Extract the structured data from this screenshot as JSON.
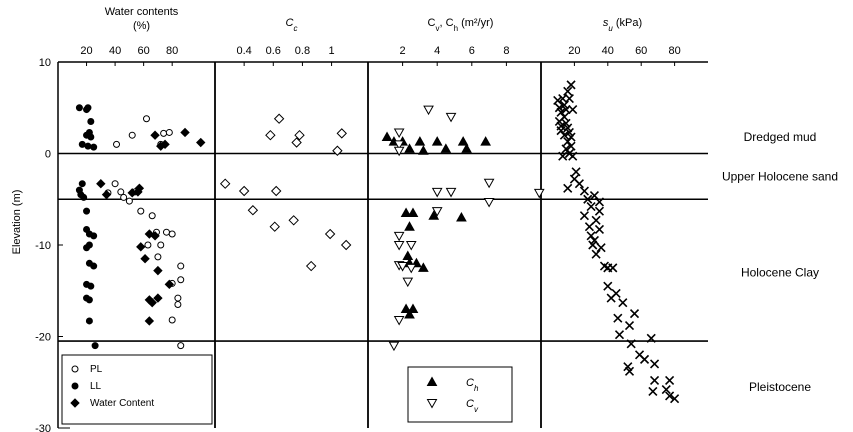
{
  "chart_data": {
    "type": "scatter",
    "y_axis": {
      "label": "Elevation (m)",
      "range": [
        -30,
        10
      ],
      "ticks": [
        10,
        0,
        -10,
        -20,
        -30
      ]
    },
    "layer_boundaries": [
      0,
      -5,
      -20.5
    ],
    "layers": [
      {
        "name": "Dredged mud",
        "elevation": 1.8
      },
      {
        "name": "Upper Holocene sand",
        "elevation": -2.5
      },
      {
        "name": "Holocene Clay",
        "elevation": -13
      },
      {
        "name": "Pleistocene",
        "elevation": -25.5
      }
    ],
    "panels": [
      {
        "id": "water",
        "title_line1": "Water contents",
        "title_line2": "(%)",
        "x_range": [
          0,
          110
        ],
        "ticks": [
          "20",
          "40",
          "60",
          "80"
        ],
        "tick_values": [
          20,
          40,
          60,
          80
        ],
        "legend": {
          "position": "bottom-left",
          "entries": [
            {
              "label": "PL",
              "marker": "circle-open"
            },
            {
              "label": "LL",
              "marker": "circle-filled"
            },
            {
              "label": "Water Content",
              "marker": "diamond-filled"
            }
          ]
        },
        "series": [
          {
            "name": "PL",
            "marker": "circle-open",
            "points": [
              [
                41,
                1.0
              ],
              [
                52,
                2.0
              ],
              [
                62,
                3.8
              ],
              [
                74,
                2.2
              ],
              [
                78,
                2.3
              ],
              [
                72,
                1.0
              ],
              [
                40,
                -3.3
              ],
              [
                35,
                -4.3
              ],
              [
                44,
                -4.2
              ],
              [
                46,
                -4.8
              ],
              [
                54,
                -4.2
              ],
              [
                50,
                -5.2
              ],
              [
                58,
                -6.3
              ],
              [
                66,
                -6.8
              ],
              [
                69,
                -8.6
              ],
              [
                76,
                -8.6
              ],
              [
                80,
                -8.8
              ],
              [
                63,
                -10.0
              ],
              [
                72,
                -10.0
              ],
              [
                70,
                -11.3
              ],
              [
                86,
                -12.3
              ],
              [
                86,
                -13.8
              ],
              [
                80,
                -14.2
              ],
              [
                84,
                -15.8
              ],
              [
                84,
                -16.5
              ],
              [
                80,
                -18.2
              ],
              [
                86,
                -21.0
              ]
            ]
          },
          {
            "name": "LL",
            "marker": "circle-filled",
            "points": [
              [
                15,
                5.0
              ],
              [
                21,
                5.0
              ],
              [
                20,
                4.8
              ],
              [
                23,
                3.5
              ],
              [
                22,
                2.3
              ],
              [
                20,
                2.0
              ],
              [
                23,
                1.8
              ],
              [
                17,
                1.0
              ],
              [
                21,
                0.8
              ],
              [
                25,
                0.7
              ],
              [
                17,
                -3.3
              ],
              [
                15,
                -4.0
              ],
              [
                16,
                -4.5
              ],
              [
                18,
                -4.8
              ],
              [
                20,
                -6.3
              ],
              [
                20,
                -8.3
              ],
              [
                22,
                -8.8
              ],
              [
                25,
                -9.0
              ],
              [
                22,
                -10.0
              ],
              [
                20,
                -10.3
              ],
              [
                22,
                -12.0
              ],
              [
                25,
                -12.3
              ],
              [
                20,
                -14.3
              ],
              [
                23,
                -14.5
              ],
              [
                20,
                -15.8
              ],
              [
                22,
                -16.0
              ],
              [
                22,
                -18.3
              ],
              [
                26,
                -21.0
              ]
            ]
          },
          {
            "name": "Water Content",
            "marker": "diamond-filled",
            "points": [
              [
                68,
                2.0
              ],
              [
                72,
                0.8
              ],
              [
                75,
                1.0
              ],
              [
                89,
                2.3
              ],
              [
                100,
                1.2
              ],
              [
                30,
                -3.3
              ],
              [
                34,
                -4.5
              ],
              [
                52,
                -4.3
              ],
              [
                56,
                -4.2
              ],
              [
                57,
                -3.8
              ],
              [
                64,
                -8.8
              ],
              [
                68,
                -9.0
              ],
              [
                58,
                -10.2
              ],
              [
                61,
                -11.5
              ],
              [
                70,
                -12.8
              ],
              [
                78,
                -14.3
              ],
              [
                66,
                -16.3
              ],
              [
                64,
                -16.0
              ],
              [
                70,
                -15.8
              ],
              [
                64,
                -18.3
              ]
            ]
          }
        ]
      },
      {
        "id": "cc",
        "title": "C_c",
        "title_main": "C",
        "title_sub": "c",
        "x_range": [
          0.2,
          1.25
        ],
        "ticks": [
          "0.4",
          "0.6",
          "0.8",
          "1"
        ],
        "tick_values": [
          0.4,
          0.6,
          0.8,
          1.0
        ],
        "series": [
          {
            "name": "Cc",
            "marker": "diamond-open",
            "points": [
              [
                0.64,
                3.8
              ],
              [
                0.58,
                2.0
              ],
              [
                0.78,
                2.0
              ],
              [
                0.76,
                1.2
              ],
              [
                1.07,
                2.2
              ],
              [
                1.04,
                0.3
              ],
              [
                0.27,
                -3.3
              ],
              [
                0.4,
                -4.1
              ],
              [
                0.62,
                -4.1
              ],
              [
                0.46,
                -6.2
              ],
              [
                0.61,
                -8.0
              ],
              [
                0.74,
                -7.3
              ],
              [
                0.99,
                -8.8
              ],
              [
                1.1,
                -10.0
              ],
              [
                0.86,
                -12.3
              ]
            ]
          }
        ]
      },
      {
        "id": "cvch",
        "title": "Cv, Ch (m²/yr)",
        "title_prefix": "C",
        "title_sub1": "v",
        "title_mid": ", C",
        "title_sub2": "h",
        "title_suffix": " (m²/yr)",
        "x_range": [
          0,
          10
        ],
        "ticks": [
          "2",
          "4",
          "6",
          "8"
        ],
        "tick_values": [
          2,
          4,
          6,
          8
        ],
        "legend": {
          "position": "bottom-right",
          "entries": [
            {
              "label": "C_h",
              "main": "C",
              "sub": "h",
              "marker": "triangle-filled"
            },
            {
              "label": "C_v",
              "main": "C",
              "sub": "v",
              "marker": "triangle-open"
            }
          ]
        },
        "series": [
          {
            "name": "Ch",
            "marker": "triangle-filled",
            "points": [
              [
                1.1,
                1.8
              ],
              [
                1.5,
                1.3
              ],
              [
                2.0,
                1.3
              ],
              [
                2.4,
                0.5
              ],
              [
                3.0,
                1.3
              ],
              [
                3.2,
                0.3
              ],
              [
                4.0,
                1.3
              ],
              [
                4.5,
                0.5
              ],
              [
                5.5,
                1.3
              ],
              [
                5.7,
                0.5
              ],
              [
                6.8,
                1.3
              ],
              [
                2.2,
                -6.5
              ],
              [
                2.6,
                -6.5
              ],
              [
                3.8,
                -6.8
              ],
              [
                5.4,
                -7.0
              ],
              [
                2.4,
                -8.0
              ],
              [
                2.3,
                -11.2
              ],
              [
                2.4,
                -12.0
              ],
              [
                2.8,
                -12.0
              ],
              [
                3.2,
                -12.5
              ],
              [
                2.2,
                -17.0
              ],
              [
                2.6,
                -17.0
              ],
              [
                2.4,
                -17.6
              ]
            ]
          },
          {
            "name": "Cv",
            "marker": "triangle-open",
            "points": [
              [
                3.5,
                4.8
              ],
              [
                4.8,
                4.0
              ],
              [
                1.8,
                2.3
              ],
              [
                1.8,
                1.0
              ],
              [
                1.8,
                0.3
              ],
              [
                4.0,
                -4.2
              ],
              [
                4.8,
                -4.2
              ],
              [
                7.0,
                -3.2
              ],
              [
                7.0,
                -5.3
              ],
              [
                9.9,
                -4.3
              ],
              [
                4.0,
                -6.3
              ],
              [
                1.8,
                -9.0
              ],
              [
                1.8,
                -10.0
              ],
              [
                2.5,
                -10.0
              ],
              [
                1.8,
                -12.2
              ],
              [
                2.0,
                -12.3
              ],
              [
                2.5,
                -12.5
              ],
              [
                2.3,
                -14.0
              ],
              [
                1.8,
                -18.2
              ],
              [
                1.5,
                -21.0
              ]
            ]
          }
        ]
      },
      {
        "id": "su",
        "title": "su (kPa)",
        "title_main": "s",
        "title_sub": "u",
        "title_suffix": " (kPa)",
        "x_range": [
          0,
          100
        ],
        "ticks": [
          "20",
          "40",
          "60",
          "80"
        ],
        "tick_values": [
          20,
          40,
          60,
          80
        ],
        "series": [
          {
            "name": "su",
            "marker": "x",
            "points": [
              [
                18,
                7.5
              ],
              [
                16,
                6.8
              ],
              [
                17,
                6.0
              ],
              [
                13,
                6.0
              ],
              [
                10,
                5.8
              ],
              [
                14,
                5.3
              ],
              [
                11,
                5.0
              ],
              [
                15,
                4.8
              ],
              [
                19,
                4.8
              ],
              [
                12,
                4.5
              ],
              [
                14,
                4.0
              ],
              [
                11,
                3.5
              ],
              [
                15,
                3.3
              ],
              [
                12,
                3.0
              ],
              [
                16,
                2.8
              ],
              [
                12,
                2.5
              ],
              [
                17,
                2.3
              ],
              [
                14,
                2.0
              ],
              [
                18,
                1.8
              ],
              [
                16,
                1.3
              ],
              [
                18,
                0.8
              ],
              [
                15,
                0.5
              ],
              [
                17,
                0.0
              ],
              [
                13,
                -0.3
              ],
              [
                19,
                -0.3
              ],
              [
                21,
                -2.0
              ],
              [
                20,
                -2.8
              ],
              [
                23,
                -3.3
              ],
              [
                16,
                -3.8
              ],
              [
                26,
                -4.1
              ],
              [
                32,
                -4.6
              ],
              [
                28,
                -5.0
              ],
              [
                35,
                -5.3
              ],
              [
                30,
                -5.8
              ],
              [
                35,
                -6.3
              ],
              [
                26,
                -6.8
              ],
              [
                33,
                -7.3
              ],
              [
                29,
                -8.0
              ],
              [
                35,
                -8.3
              ],
              [
                30,
                -9.0
              ],
              [
                32,
                -9.5
              ],
              [
                31,
                -10.0
              ],
              [
                36,
                -10.3
              ],
              [
                33,
                -11.0
              ],
              [
                38,
                -12.3
              ],
              [
                40,
                -12.5
              ],
              [
                43,
                -12.5
              ],
              [
                40,
                -14.5
              ],
              [
                45,
                -15.3
              ],
              [
                42,
                -15.8
              ],
              [
                49,
                -16.3
              ],
              [
                56,
                -17.5
              ],
              [
                46,
                -18.0
              ],
              [
                53,
                -18.8
              ],
              [
                47,
                -19.8
              ],
              [
                54,
                -20.8
              ],
              [
                66,
                -20.2
              ],
              [
                59,
                -22.0
              ],
              [
                62,
                -22.5
              ],
              [
                68,
                -23.0
              ],
              [
                52,
                -23.3
              ],
              [
                53,
                -23.8
              ],
              [
                68,
                -24.8
              ],
              [
                77,
                -24.8
              ],
              [
                75,
                -25.8
              ],
              [
                67,
                -26.0
              ],
              [
                77,
                -26.5
              ],
              [
                80,
                -26.8
              ]
            ]
          }
        ]
      }
    ]
  }
}
